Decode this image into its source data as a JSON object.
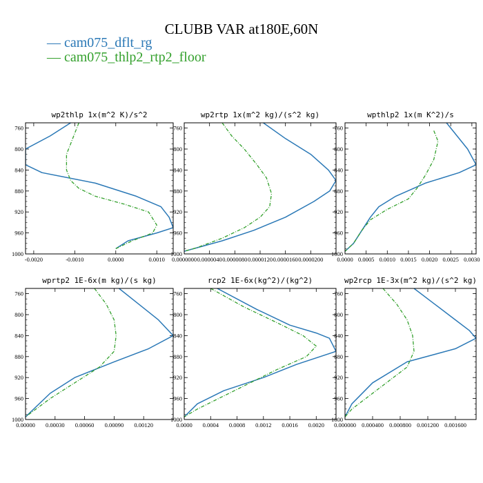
{
  "title": "CLUBB VAR at180E,60N",
  "legend": [
    {
      "label": "cam075_dflt_rg",
      "color": "#2a78b6",
      "prefix": "—",
      "dash": "solid"
    },
    {
      "label": "cam075_thlp2_rtp2_floor",
      "color": "#33a02c",
      "prefix": "—",
      "dash": "dashdot"
    }
  ],
  "chart_data": [
    {
      "type": "line",
      "title": "wp2thlp  1x(m^2 K)/s^2",
      "xlim": [
        -0.0022,
        0.0014
      ],
      "ylim": [
        1000,
        750
      ],
      "xticks": [
        -0.002,
        -0.001,
        0.0,
        0.001
      ],
      "xticklabels": [
        "-0.0020",
        "-0.0010",
        "0.0000",
        "0.0010"
      ],
      "yticks": [
        760,
        800,
        840,
        880,
        920,
        960,
        1000
      ],
      "series": [
        {
          "name": "cam075_dflt_rg",
          "x": [
            -0.0011,
            -0.0016,
            -0.0022,
            -0.0022,
            -0.0018,
            -0.0005,
            0.0005,
            0.0011,
            0.0013,
            0.0014,
            0.001,
            0.0003,
            0.0
          ],
          "y": [
            750,
            775,
            800,
            830,
            845,
            865,
            890,
            910,
            930,
            950,
            960,
            975,
            990
          ]
        },
        {
          "name": "cam075_thlp2_rtp2_floor",
          "x": [
            -0.0009,
            -0.001,
            -0.0011,
            -0.0012,
            -0.0012,
            -0.0011,
            -0.0009,
            -0.0005,
            0.0002,
            0.0008,
            0.001,
            0.0009,
            0.0004,
            0.0
          ],
          "y": [
            750,
            770,
            790,
            810,
            840,
            860,
            875,
            890,
            905,
            920,
            945,
            960,
            975,
            990
          ]
        }
      ]
    },
    {
      "type": "line",
      "title": "wp2rtp  1x(m^2 kg)/(s^2 kg)",
      "xlim": [
        0.0,
        2.4e-05
      ],
      "ylim": [
        1000,
        750
      ],
      "xticks": [
        0.0,
        4e-06,
        8e-06,
        1.2e-05,
        1.6e-05,
        2e-05
      ],
      "xticklabels": [
        "0.0000000",
        "0.0000040",
        "0.0000080",
        "0.0000120",
        "0.0000160",
        "0.0000200"
      ],
      "yticks": [
        760,
        800,
        840,
        880,
        920,
        960,
        1000
      ],
      "series": [
        {
          "name": "cam075_dflt_rg",
          "x": [
            1.25e-05,
            1.6e-05,
            2e-05,
            2.28e-05,
            2.4e-05,
            2.3e-05,
            2.05e-05,
            1.6e-05,
            1.1e-05,
            6e-06,
            1.5e-06,
            0.0
          ],
          "y": [
            750,
            780,
            810,
            840,
            860,
            880,
            900,
            930,
            955,
            975,
            990,
            995
          ]
        },
        {
          "name": "cam075_thlp2_rtp2_floor",
          "x": [
            6e-06,
            7.5e-06,
            9.5e-06,
            1.15e-05,
            1.3e-05,
            1.38e-05,
            1.35e-05,
            1.2e-05,
            9.5e-06,
            6e-06,
            2e-06,
            0.0
          ],
          "y": [
            750,
            775,
            800,
            830,
            855,
            885,
            910,
            930,
            950,
            970,
            988,
            995
          ]
        }
      ]
    },
    {
      "type": "line",
      "title": "wpthlp2  1x(m K^2)/s",
      "xlim": [
        0.0,
        0.0031
      ],
      "ylim": [
        1000,
        750
      ],
      "xticks": [
        0.0,
        0.0005,
        0.001,
        0.0015,
        0.002,
        0.0025,
        0.003
      ],
      "xticklabels": [
        "0.0000",
        "0.0005",
        "0.0010",
        "0.0015",
        "0.0020",
        "0.0025",
        "0.0030"
      ],
      "yticks": [
        760,
        800,
        840,
        880,
        920,
        960,
        1000
      ],
      "series": [
        {
          "name": "cam075_dflt_rg",
          "x": [
            0.0024,
            0.0029,
            0.0031,
            0.0027,
            0.0019,
            0.0012,
            0.0008,
            0.0006,
            0.0004,
            0.0002,
            0.0
          ],
          "y": [
            750,
            800,
            830,
            845,
            865,
            890,
            910,
            930,
            955,
            980,
            995
          ]
        },
        {
          "name": "cam075_thlp2_rtp2_floor",
          "x": [
            0.0021,
            0.0022,
            0.0021,
            0.0019,
            0.0017,
            0.0015,
            0.001,
            0.0006,
            0.0004,
            0.0002,
            0.0
          ],
          "y": [
            765,
            785,
            820,
            850,
            875,
            895,
            915,
            935,
            955,
            980,
            995
          ]
        }
      ]
    },
    {
      "type": "line",
      "title": "wprtp2  1E-6x(m kg)/(s kg)",
      "xlim": [
        0.0,
        0.0015
      ],
      "ylim": [
        1000,
        750
      ],
      "xticks": [
        0.0,
        0.0003,
        0.0006,
        0.0009,
        0.0012
      ],
      "xticklabels": [
        "0.00000",
        "0.00030",
        "0.00060",
        "0.00090",
        "0.00120"
      ],
      "yticks": [
        760,
        800,
        840,
        880,
        920,
        960,
        1000
      ],
      "series": [
        {
          "name": "cam075_dflt_rg",
          "x": [
            0.00095,
            0.00115,
            0.00135,
            0.0015,
            0.00125,
            0.0009,
            0.0005,
            0.00025,
            0.0
          ],
          "y": [
            750,
            780,
            810,
            840,
            865,
            890,
            920,
            950,
            995
          ]
        },
        {
          "name": "cam075_thlp2_rtp2_floor",
          "x": [
            0.0007,
            0.00082,
            0.0009,
            0.00092,
            0.0009,
            0.00075,
            0.0005,
            0.00025,
            0.0
          ],
          "y": [
            750,
            780,
            810,
            840,
            870,
            900,
            930,
            960,
            995
          ]
        }
      ]
    },
    {
      "type": "line",
      "title": "rcp2  1E-6x(kg^2)/(kg^2)",
      "xlim": [
        0.0,
        0.0023
      ],
      "ylim": [
        1000,
        750
      ],
      "xticks": [
        0.0,
        0.0004,
        0.0008,
        0.0012,
        0.0016,
        0.002
      ],
      "xticklabels": [
        "0.0000",
        "0.0004",
        "0.0008",
        "0.0012",
        "0.0016",
        "0.0020"
      ],
      "yticks": [
        760,
        800,
        840,
        880,
        920,
        960,
        1000
      ],
      "series": [
        {
          "name": "cam075_dflt_rg",
          "x": [
            0.0005,
            0.0011,
            0.0016,
            0.002,
            0.0022,
            0.0023,
            0.0017,
            0.0012,
            0.0006,
            0.0002,
            0.0
          ],
          "y": [
            750,
            790,
            820,
            835,
            845,
            870,
            895,
            920,
            945,
            970,
            995
          ]
        },
        {
          "name": "cam075_thlp2_rtp2_floor",
          "x": [
            0.0004,
            0.0009,
            0.0014,
            0.0018,
            0.002,
            0.00185,
            0.0014,
            0.001,
            0.0006,
            0.0002,
            0.0
          ],
          "y": [
            750,
            785,
            815,
            840,
            860,
            880,
            905,
            930,
            955,
            980,
            995
          ]
        }
      ]
    },
    {
      "type": "line",
      "title": "wp2rcp  1E-3x(m^2 kg)/(s^2 kg)",
      "xlim": [
        0.0,
        0.0019
      ],
      "ylim": [
        1000,
        750
      ],
      "xticks": [
        0.0,
        0.0004,
        0.0008,
        0.0012,
        0.0016
      ],
      "xticklabels": [
        "0.000000",
        "0.000400",
        "0.000800",
        "0.001200",
        "0.001600"
      ],
      "yticks": [
        760,
        800,
        840,
        880,
        920,
        960,
        1000
      ],
      "series": [
        {
          "name": "cam075_dflt_rg",
          "x": [
            0.001,
            0.0013,
            0.0016,
            0.0018,
            0.0019,
            0.0016,
            0.0009,
            0.0004,
            0.0001,
            0.0
          ],
          "y": [
            750,
            780,
            810,
            830,
            845,
            865,
            890,
            930,
            970,
            995
          ]
        },
        {
          "name": "cam075_thlp2_rtp2_floor",
          "x": [
            0.00055,
            0.00075,
            0.0009,
            0.00098,
            0.001,
            0.0009,
            0.0006,
            0.0003,
            0.0001,
            0.0
          ],
          "y": [
            750,
            780,
            810,
            840,
            870,
            900,
            930,
            960,
            980,
            995
          ]
        }
      ]
    }
  ]
}
